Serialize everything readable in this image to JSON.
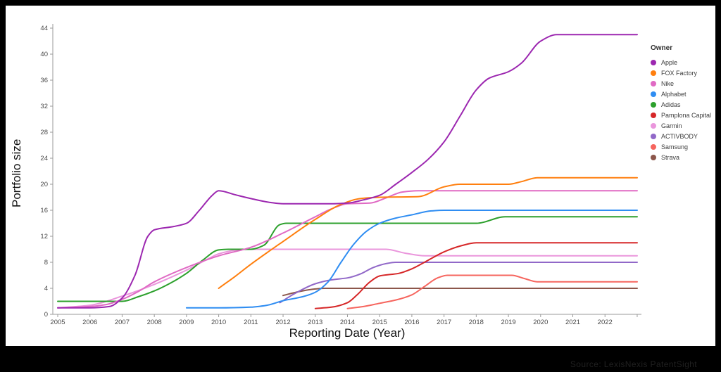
{
  "chart_data": {
    "type": "line",
    "title": "",
    "ylabel": "Portfolio size",
    "xlabel": "Reporting Date (Year)",
    "legend_title": "Owner",
    "legend_position": "right",
    "grid": false,
    "xlim": [
      2004.8,
      2023.2
    ],
    "ylim": [
      0,
      45.5
    ],
    "y_ticks": [
      0,
      4,
      8,
      12,
      16,
      20,
      24,
      28,
      32,
      36,
      40,
      44
    ],
    "x_ticks": [
      2005,
      2006,
      2007,
      2008,
      2009,
      2010,
      2011,
      2012,
      2013,
      2014,
      2015,
      2016,
      2017,
      2018,
      2019,
      2020,
      2021,
      2022
    ],
    "x_axis_extra_unlabeled_tick": 2023,
    "axis_color": "#9a9a9a",
    "tick_label_color": "#484848",
    "series": [
      {
        "name": "Apple",
        "color": "#9c27b0",
        "points": [
          [
            2005,
            1
          ],
          [
            2006,
            1
          ],
          [
            2006.6,
            1.2
          ],
          [
            2007,
            2.5
          ],
          [
            2007.4,
            6
          ],
          [
            2007.8,
            12
          ],
          [
            2008,
            13
          ],
          [
            2008.6,
            13.5
          ],
          [
            2009,
            14
          ],
          [
            2009.4,
            16
          ],
          [
            2009.8,
            18.3
          ],
          [
            2010,
            19
          ],
          [
            2010.5,
            18.4
          ],
          [
            2011,
            17.8
          ],
          [
            2011.6,
            17.2
          ],
          [
            2012,
            17
          ],
          [
            2013.5,
            17
          ],
          [
            2014,
            17.1
          ],
          [
            2014.5,
            17.6
          ],
          [
            2015,
            18.3
          ],
          [
            2015.5,
            20
          ],
          [
            2016,
            21.8
          ],
          [
            2016.5,
            23.8
          ],
          [
            2017,
            26.5
          ],
          [
            2017.5,
            30.5
          ],
          [
            2018,
            34.5
          ],
          [
            2018.4,
            36.3
          ],
          [
            2019,
            37.3
          ],
          [
            2019.4,
            38.6
          ],
          [
            2020,
            42
          ],
          [
            2020.5,
            43
          ],
          [
            2021,
            43
          ],
          [
            2023,
            43
          ]
        ]
      },
      {
        "name": "FOX Factory",
        "color": "#ff7f0e",
        "points": [
          [
            2010,
            4
          ],
          [
            2010.5,
            5.8
          ],
          [
            2011,
            7.7
          ],
          [
            2012,
            11.2
          ],
          [
            2013,
            14.6
          ],
          [
            2013.8,
            16.9
          ],
          [
            2014.4,
            17.8
          ],
          [
            2015,
            18
          ],
          [
            2016.2,
            18.1
          ],
          [
            2017,
            19.6
          ],
          [
            2017.5,
            20
          ],
          [
            2019,
            20
          ],
          [
            2019.4,
            20.4
          ],
          [
            2019.9,
            21
          ],
          [
            2021,
            21
          ],
          [
            2023,
            21
          ]
        ]
      },
      {
        "name": "Nike",
        "color": "#e06ac4",
        "points": [
          [
            2005,
            1
          ],
          [
            2006,
            1.2
          ],
          [
            2006.5,
            1.5
          ],
          [
            2007,
            2.3
          ],
          [
            2007.5,
            3.5
          ],
          [
            2008,
            5
          ],
          [
            2009,
            7.2
          ],
          [
            2010,
            9
          ],
          [
            2011,
            10.3
          ],
          [
            2012,
            12.5
          ],
          [
            2013,
            15
          ],
          [
            2013.5,
            16.2
          ],
          [
            2014,
            17
          ],
          [
            2014.7,
            17.1
          ],
          [
            2015.2,
            17.9
          ],
          [
            2015.7,
            18.8
          ],
          [
            2016.2,
            19
          ],
          [
            2023,
            19
          ]
        ]
      },
      {
        "name": "Alphabet",
        "color": "#2f8df2",
        "points": [
          [
            2009,
            1
          ],
          [
            2010,
            1
          ],
          [
            2011,
            1.1
          ],
          [
            2011.5,
            1.4
          ],
          [
            2012,
            2.1
          ],
          [
            2012.6,
            2.7
          ],
          [
            2013,
            3.4
          ],
          [
            2013.4,
            5
          ],
          [
            2013.8,
            8
          ],
          [
            2014.2,
            10.8
          ],
          [
            2014.6,
            12.8
          ],
          [
            2015,
            14
          ],
          [
            2015.5,
            14.8
          ],
          [
            2016,
            15.3
          ],
          [
            2016.6,
            15.9
          ],
          [
            2017,
            16
          ],
          [
            2023,
            16
          ]
        ]
      },
      {
        "name": "Adidas",
        "color": "#2ca02c",
        "points": [
          [
            2005,
            2
          ],
          [
            2007,
            2
          ],
          [
            2007.5,
            2.7
          ],
          [
            2008,
            3.6
          ],
          [
            2008.5,
            4.8
          ],
          [
            2009,
            6.3
          ],
          [
            2009.5,
            8.3
          ],
          [
            2010,
            9.9
          ],
          [
            2010.3,
            10
          ],
          [
            2011,
            10
          ],
          [
            2011.4,
            10.6
          ],
          [
            2011.9,
            13.8
          ],
          [
            2012.1,
            14
          ],
          [
            2018,
            14
          ],
          [
            2018.9,
            15
          ],
          [
            2023,
            15
          ]
        ]
      },
      {
        "name": "Pamplona Capital",
        "color": "#d62728",
        "points": [
          [
            2013,
            0.9
          ],
          [
            2013.5,
            1.1
          ],
          [
            2014,
            1.8
          ],
          [
            2014.3,
            3
          ],
          [
            2014.7,
            5
          ],
          [
            2015,
            5.9
          ],
          [
            2015.6,
            6.3
          ],
          [
            2016,
            7
          ],
          [
            2016.5,
            8.3
          ],
          [
            2017,
            9.6
          ],
          [
            2017.5,
            10.5
          ],
          [
            2018,
            11
          ],
          [
            2023,
            11
          ]
        ]
      },
      {
        "name": "Garmin",
        "color": "#ea96dc",
        "points": [
          [
            2005,
            1
          ],
          [
            2006,
            1.4
          ],
          [
            2007,
            2.8
          ],
          [
            2008,
            4.6
          ],
          [
            2009,
            6.8
          ],
          [
            2009.7,
            8.6
          ],
          [
            2010,
            9.3
          ],
          [
            2010.6,
            9.9
          ],
          [
            2011,
            10
          ],
          [
            2015.2,
            10
          ],
          [
            2015.8,
            9.4
          ],
          [
            2016.4,
            9
          ],
          [
            2023,
            9
          ]
        ]
      },
      {
        "name": "ACTIVBODY",
        "color": "#9168c8",
        "points": [
          [
            2011.9,
            1.8
          ],
          [
            2012.4,
            3.3
          ],
          [
            2013,
            4.7
          ],
          [
            2013.5,
            5.3
          ],
          [
            2014,
            5.6
          ],
          [
            2014.4,
            6.2
          ],
          [
            2014.8,
            7.2
          ],
          [
            2015.2,
            7.8
          ],
          [
            2015.5,
            8
          ],
          [
            2023,
            8
          ]
        ]
      },
      {
        "name": "Samsung",
        "color": "#f6655e",
        "points": [
          [
            2014,
            0.9
          ],
          [
            2014.5,
            1.2
          ],
          [
            2015,
            1.7
          ],
          [
            2015.5,
            2.2
          ],
          [
            2016,
            3
          ],
          [
            2016.4,
            4.3
          ],
          [
            2016.8,
            5.6
          ],
          [
            2017.1,
            6
          ],
          [
            2019.1,
            6
          ],
          [
            2019.5,
            5.5
          ],
          [
            2019.9,
            5
          ],
          [
            2023,
            5
          ]
        ]
      },
      {
        "name": "Strava",
        "color": "#8c564b",
        "points": [
          [
            2012,
            2.9
          ],
          [
            2012.5,
            3.5
          ],
          [
            2013,
            3.9
          ],
          [
            2013.3,
            4
          ],
          [
            2023,
            4
          ]
        ]
      }
    ]
  },
  "footer": {
    "source_text": "Source: LexisNexis PatentSight"
  }
}
